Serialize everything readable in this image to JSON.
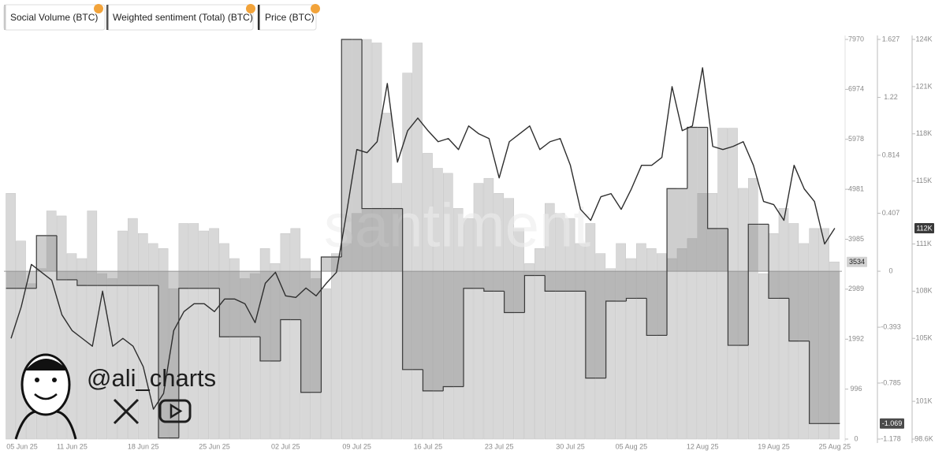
{
  "chart_data": {
    "type": "combo",
    "x": [
      "05 Jun 25",
      "06 Jun 25",
      "07 Jun 25",
      "08 Jun 25",
      "09 Jun 25",
      "10 Jun 25",
      "11 Jun 25",
      "12 Jun 25",
      "13 Jun 25",
      "14 Jun 25",
      "15 Jun 25",
      "16 Jun 25",
      "17 Jun 25",
      "18 Jun 25",
      "19 Jun 25",
      "20 Jun 25",
      "21 Jun 25",
      "22 Jun 25",
      "23 Jun 25",
      "24 Jun 25",
      "25 Jun 25",
      "26 Jun 25",
      "27 Jun 25",
      "28 Jun 25",
      "29 Jun 25",
      "30 Jun 25",
      "01 Jul 25",
      "02 Jul 25",
      "03 Jul 25",
      "04 Jul 25",
      "05 Jul 25",
      "06 Jul 25",
      "07 Jul 25",
      "08 Jul 25",
      "09 Jul 25",
      "10 Jul 25",
      "11 Jul 25",
      "12 Jul 25",
      "13 Jul 25",
      "14 Jul 25",
      "15 Jul 25",
      "16 Jul 25",
      "17 Jul 25",
      "18 Jul 25",
      "19 Jul 25",
      "20 Jul 25",
      "21 Jul 25",
      "22 Jul 25",
      "23 Jul 25",
      "24 Jul 25",
      "25 Jul 25",
      "26 Jul 25",
      "27 Jul 25",
      "28 Jul 25",
      "29 Jul 25",
      "30 Jul 25",
      "31 Jul 25",
      "01 Aug 25",
      "02 Aug 25",
      "03 Aug 25",
      "04 Aug 25",
      "05 Aug 25",
      "06 Aug 25",
      "07 Aug 25",
      "08 Aug 25",
      "09 Aug 25",
      "10 Aug 25",
      "11 Aug 25",
      "12 Aug 25",
      "13 Aug 25",
      "14 Aug 25",
      "15 Aug 25",
      "16 Aug 25",
      "17 Aug 25",
      "18 Aug 25",
      "19 Aug 25",
      "20 Aug 25",
      "21 Aug 25",
      "22 Aug 25",
      "23 Aug 25",
      "24 Aug 25",
      "25 Aug 25"
    ],
    "xticks": [
      "05 Jun 25",
      "11 Jun 25",
      "18 Jun 25",
      "25 Jun 25",
      "02 Jul 25",
      "09 Jul 25",
      "16 Jul 25",
      "23 Jul 25",
      "30 Jul 25",
      "05 Aug 25",
      "12 Aug 25",
      "19 Aug 25",
      "25 Aug 25"
    ],
    "ylim": [
      0,
      7970
    ],
    "yticks": [
      0,
      996,
      1992,
      2989,
      3985,
      4981,
      5978,
      6974,
      7970
    ],
    "y2lim": [
      -1.178,
      1.627
    ],
    "y2ticks": [
      -1.178,
      -0.785,
      -0.393,
      0,
      0.407,
      0.814,
      1.22,
      1.627
    ],
    "y3lim": [
      98.6,
      124
    ],
    "y3ticks": [
      {
        "value": 98.6,
        "label": "98.6K"
      },
      {
        "value": 101,
        "label": "101K"
      },
      {
        "value": 105,
        "label": "105K"
      },
      {
        "value": 108,
        "label": "108K"
      },
      {
        "value": 111,
        "label": "111K"
      },
      {
        "value": 115,
        "label": "115K"
      },
      {
        "value": 118,
        "label": "118K"
      },
      {
        "value": 121,
        "label": "121K"
      },
      {
        "value": 124,
        "label": "124K"
      }
    ],
    "grid": false,
    "series": [
      {
        "name": "Social Volume (BTC)",
        "type": "bar",
        "axis": "y",
        "color": "#d8d8d8",
        "values": [
          4900,
          3950,
          3100,
          3400,
          4550,
          4450,
          3700,
          3600,
          4550,
          3300,
          3200,
          4150,
          4400,
          4100,
          3900,
          3800,
          3000,
          4300,
          4300,
          4150,
          4200,
          3900,
          3600,
          3200,
          3300,
          3800,
          3500,
          4100,
          4200,
          3600,
          3200,
          3000,
          3700,
          3900,
          4500,
          7970,
          7900,
          6500,
          5100,
          7300,
          7900,
          5700,
          5400,
          5300,
          4600,
          4400,
          5100,
          5200,
          4900,
          4800,
          4200,
          3500,
          3800,
          4700,
          4500,
          4400,
          3900,
          4300,
          3700,
          3400,
          3900,
          3600,
          3900,
          3800,
          3700,
          3600,
          3800,
          4000,
          4900,
          4900,
          6200,
          6200,
          5000,
          5200,
          3300,
          4100,
          4600,
          4300,
          3900,
          4200,
          4200,
          3534
        ],
        "marker": 3534
      },
      {
        "name": "Weighted sentiment (Total) (BTC)",
        "type": "step",
        "axis": "y2",
        "color": "#3a3a3a",
        "values": [
          -0.12,
          -0.12,
          -0.12,
          0.25,
          0.25,
          -0.06,
          -0.06,
          -0.1,
          -0.1,
          -0.1,
          -0.1,
          -0.1,
          -0.1,
          -0.1,
          -0.1,
          -1.17,
          -1.17,
          -0.12,
          -0.12,
          -0.12,
          -0.12,
          -0.46,
          -0.46,
          -0.46,
          -0.46,
          -0.63,
          -0.63,
          -0.34,
          -0.34,
          -0.85,
          -0.85,
          0.1,
          0.1,
          1.627,
          1.627,
          0.44,
          0.44,
          0.44,
          0.44,
          -0.69,
          -0.69,
          -0.84,
          -0.84,
          -0.81,
          -0.81,
          -0.12,
          -0.12,
          -0.14,
          -0.14,
          -0.29,
          -0.29,
          -0.03,
          -0.03,
          -0.14,
          -0.14,
          -0.14,
          -0.14,
          -0.75,
          -0.75,
          -0.21,
          -0.21,
          -0.19,
          -0.19,
          -0.45,
          -0.45,
          0.58,
          0.58,
          1.01,
          1.01,
          0.3,
          0.3,
          -0.52,
          -0.52,
          0.33,
          0.33,
          -0.19,
          -0.19,
          -0.49,
          -0.49,
          -1.069,
          -1.069,
          -1.069
        ],
        "marker": -1.069
      },
      {
        "name": "Price (BTC)",
        "type": "line",
        "axis": "y3",
        "color": "#2e2e2e",
        "values": [
          105,
          107,
          109.7,
          109.2,
          108.7,
          106.5,
          105.5,
          105,
          104.5,
          108,
          104.5,
          105,
          104.5,
          103.2,
          100.5,
          101.5,
          105.5,
          106.7,
          107.2,
          107.2,
          106.7,
          107.5,
          107.5,
          107.2,
          106,
          108.5,
          109.2,
          107.7,
          107.6,
          108.2,
          107.7,
          108.5,
          109.2,
          113,
          117,
          116.8,
          117.5,
          121.2,
          116.2,
          118.2,
          119,
          118.2,
          117.5,
          117.7,
          117,
          118.5,
          118,
          117.7,
          115.2,
          117.5,
          118,
          118.5,
          117,
          117.5,
          117.7,
          116,
          113.2,
          112.5,
          114,
          114.2,
          113.2,
          114.5,
          116,
          116,
          116.5,
          121,
          118.2,
          118.5,
          122.2,
          117.2,
          117,
          117.2,
          117.5,
          116,
          113.7,
          113.5,
          112.5,
          116,
          114.5,
          113.7,
          111,
          112
        ],
        "marker": {
          "value": 112,
          "label": "112K"
        }
      }
    ]
  },
  "watermark": {
    "brand": "santiment",
    "handle": "@ali_charts"
  }
}
